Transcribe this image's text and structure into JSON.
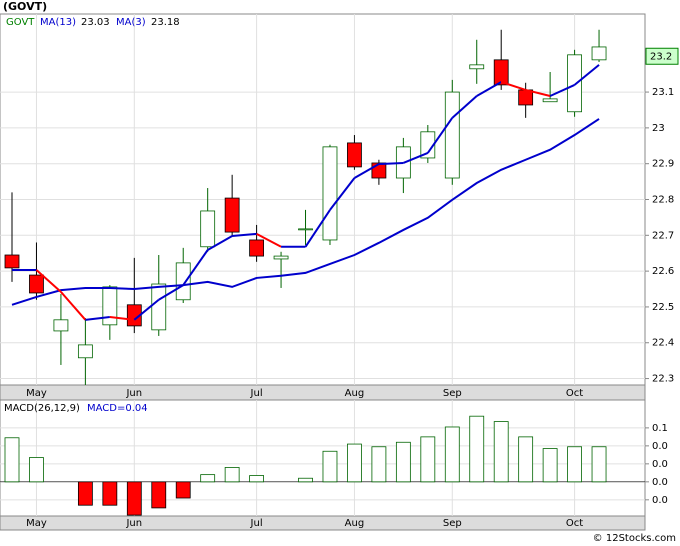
{
  "chart_data": {
    "type": "candlestick",
    "title": "(GOVT)",
    "symbol": "GOVT",
    "categories": [
      null,
      "May",
      null,
      null,
      null,
      "Jun",
      null,
      null,
      null,
      null,
      "Jul",
      null,
      null,
      null,
      "Aug",
      null,
      null,
      null,
      "Sep",
      null,
      null,
      null,
      null,
      "Oct",
      null
    ],
    "open": [
      22.645,
      22.589,
      22.433,
      22.358,
      22.45,
      22.506,
      22.436,
      22.52,
      22.668,
      22.804,
      22.687,
      22.634,
      22.718,
      22.687,
      22.958,
      22.902,
      22.86,
      22.916,
      22.86,
      23.165,
      23.19,
      23.106,
      23.073,
      23.045,
      23.19
    ],
    "high": [
      22.82,
      22.68,
      22.536,
      22.469,
      22.561,
      22.637,
      22.645,
      22.665,
      22.832,
      22.869,
      22.729,
      22.654,
      22.771,
      22.953,
      22.98,
      22.911,
      22.972,
      23.008,
      23.134,
      23.246,
      23.274,
      23.126,
      23.156,
      23.218,
      23.274
    ],
    "low": [
      22.57,
      22.52,
      22.338,
      22.282,
      22.408,
      22.427,
      22.419,
      22.511,
      22.654,
      22.698,
      22.626,
      22.553,
      22.673,
      22.673,
      22.883,
      22.841,
      22.818,
      22.902,
      22.841,
      23.123,
      23.106,
      23.028,
      23.073,
      23.031,
      23.184
    ],
    "close": [
      22.609,
      22.539,
      22.464,
      22.394,
      22.556,
      22.447,
      22.564,
      22.623,
      22.768,
      22.709,
      22.642,
      22.642,
      22.718,
      22.947,
      22.891,
      22.86,
      22.947,
      22.989,
      23.1,
      23.176,
      23.12,
      23.064,
      23.081,
      23.204,
      23.226
    ],
    "up_color": "#ffffff",
    "up_edge": "#006400",
    "down_color": "#ff0000",
    "series": [
      {
        "name": "MA(13)",
        "color": "#0000cc",
        "last_value": 23.03,
        "values": [
          22.506,
          22.528,
          22.547,
          22.553,
          22.553,
          22.55,
          22.556,
          22.561,
          22.57,
          22.556,
          22.581,
          22.587,
          22.595,
          22.62,
          22.645,
          22.679,
          22.715,
          22.749,
          22.799,
          22.846,
          22.883,
          22.911,
          22.939,
          22.98,
          23.025
        ]
      },
      {
        "name": "MA(3)",
        "color": "#0000cc",
        "down_color": "#ff0000",
        "last_value": 23.18,
        "values": [
          22.603,
          22.603,
          22.542,
          22.464,
          22.472,
          22.464,
          22.52,
          22.561,
          22.659,
          22.698,
          22.704,
          22.668,
          22.668,
          22.771,
          22.86,
          22.899,
          22.902,
          22.93,
          23.028,
          23.089,
          23.128,
          23.106,
          23.089,
          23.12,
          23.176
        ]
      }
    ],
    "last_price": 23.2,
    "ylim": [
      22.282,
      23.318
    ],
    "yticks": [
      22.3,
      22.4,
      22.5,
      22.6,
      22.7,
      22.8,
      22.9,
      23.0,
      23.1
    ],
    "grid": true,
    "macd": {
      "name": "MACD(26,12,9)",
      "value_label": "MACD=0.04",
      "ylim": [
        -0.038,
        0.091
      ],
      "yticks": [
        {
          "value": 0.06,
          "label": "0.1"
        },
        {
          "value": 0.04,
          "label": "0.0"
        },
        {
          "value": 0.02,
          "label": "0.0"
        },
        {
          "value": 0,
          "label": "0.0"
        },
        {
          "value": -0.02,
          "label": "0.0"
        }
      ],
      "values": [
        0.049,
        0.027,
        0,
        -0.026,
        -0.026,
        -0.037,
        -0.029,
        -0.018,
        0.008,
        0.016,
        0.007,
        0,
        0.004,
        0.034,
        0.042,
        0.039,
        0.044,
        0.05,
        0.061,
        0.073,
        0.067,
        0.05,
        0.037,
        0.039,
        0.039
      ],
      "up_color": "#ffffff",
      "up_edge": "#006400",
      "down_color": "#ff0000"
    },
    "footer": "© 12Stocks.com"
  }
}
